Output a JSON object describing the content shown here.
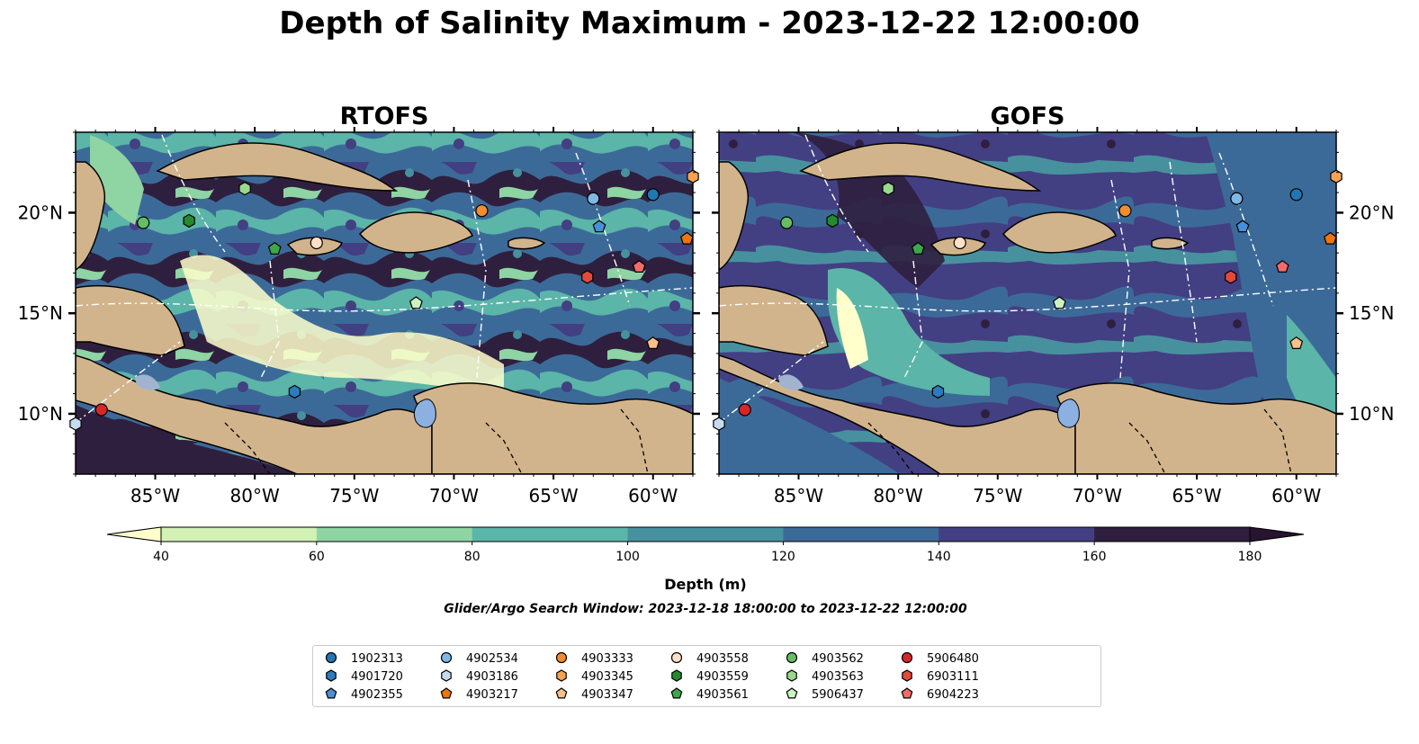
{
  "title": "Depth of Salinity Maximum - 2023-12-22 12:00:00",
  "chart_data": {
    "type": "heatmap",
    "panels": [
      {
        "title": "RTOFS"
      },
      {
        "title": "GOFS"
      }
    ],
    "x_ticks": [
      "85°W",
      "80°W",
      "75°W",
      "70°W",
      "65°W",
      "60°W"
    ],
    "y_ticks": [
      "20°N",
      "15°N",
      "10°N"
    ],
    "lon_range": [
      -89,
      -58
    ],
    "lat_range": [
      7,
      24
    ],
    "colorbar": {
      "label": "Depth (m)",
      "ticks": [
        "40",
        "60",
        "80",
        "100",
        "120",
        "140",
        "160",
        "180"
      ],
      "colors": [
        "#ffffcc",
        "#d2f1b4",
        "#8fd4a3",
        "#5bb5a8",
        "#47919f",
        "#3c6a98",
        "#433f83",
        "#2f1f3e",
        "#281330"
      ],
      "extend": "both"
    },
    "search_window": "Glider/Argo Search Window: 2023-12-18 18:00:00 to 2023-12-22 12:00:00",
    "land_color": "#d2b48c",
    "floats": [
      {
        "id": "1902313",
        "color": "#1f77b4",
        "marker": "circle",
        "lon": -60.0,
        "lat": 20.9
      },
      {
        "id": "4901720",
        "color": "#2b7bbf",
        "marker": "hexagon",
        "lon": -78.0,
        "lat": 11.1
      },
      {
        "id": "4902355",
        "color": "#4a90d9",
        "marker": "pentagon",
        "lon": -62.7,
        "lat": 19.3
      },
      {
        "id": "4902534",
        "color": "#7fb7e6",
        "marker": "circle",
        "lon": -63.0,
        "lat": 20.7
      },
      {
        "id": "4903186",
        "color": "#c6dbef",
        "marker": "hexagon",
        "lon": -89.0,
        "lat": 9.5
      },
      {
        "id": "4903217",
        "color": "#f0750b",
        "marker": "pentagon",
        "lon": -58.3,
        "lat": 18.7
      },
      {
        "id": "4903333",
        "color": "#f38c2a",
        "marker": "circle",
        "lon": -68.6,
        "lat": 20.1
      },
      {
        "id": "4903345",
        "color": "#f7a34f",
        "marker": "hexagon",
        "lon": -58.0,
        "lat": 21.8
      },
      {
        "id": "4903347",
        "color": "#fbbf8a",
        "marker": "pentagon",
        "lon": -60.0,
        "lat": 13.5
      },
      {
        "id": "4903558",
        "color": "#fde0c5",
        "marker": "circle",
        "lon": -76.9,
        "lat": 18.5
      },
      {
        "id": "4903559",
        "color": "#248a2f",
        "marker": "hexagon",
        "lon": -83.3,
        "lat": 19.6
      },
      {
        "id": "4903561",
        "color": "#3da84a",
        "marker": "pentagon",
        "lon": -79.0,
        "lat": 18.2
      },
      {
        "id": "4903562",
        "color": "#66bd63",
        "marker": "circle",
        "lon": -85.6,
        "lat": 19.5
      },
      {
        "id": "4903563",
        "color": "#9ad88d",
        "marker": "hexagon",
        "lon": -80.5,
        "lat": 21.2
      },
      {
        "id": "5906437",
        "color": "#cdf2c0",
        "marker": "pentagon",
        "lon": -71.9,
        "lat": 15.5
      },
      {
        "id": "5906480",
        "color": "#d62728",
        "marker": "circle",
        "lon": -87.7,
        "lat": 10.2
      },
      {
        "id": "6903111",
        "color": "#e34a3b",
        "marker": "hexagon",
        "lon": -63.3,
        "lat": 16.8
      },
      {
        "id": "6904223",
        "color": "#f26b6b",
        "marker": "pentagon",
        "lon": -60.7,
        "lat": 17.3
      }
    ]
  }
}
